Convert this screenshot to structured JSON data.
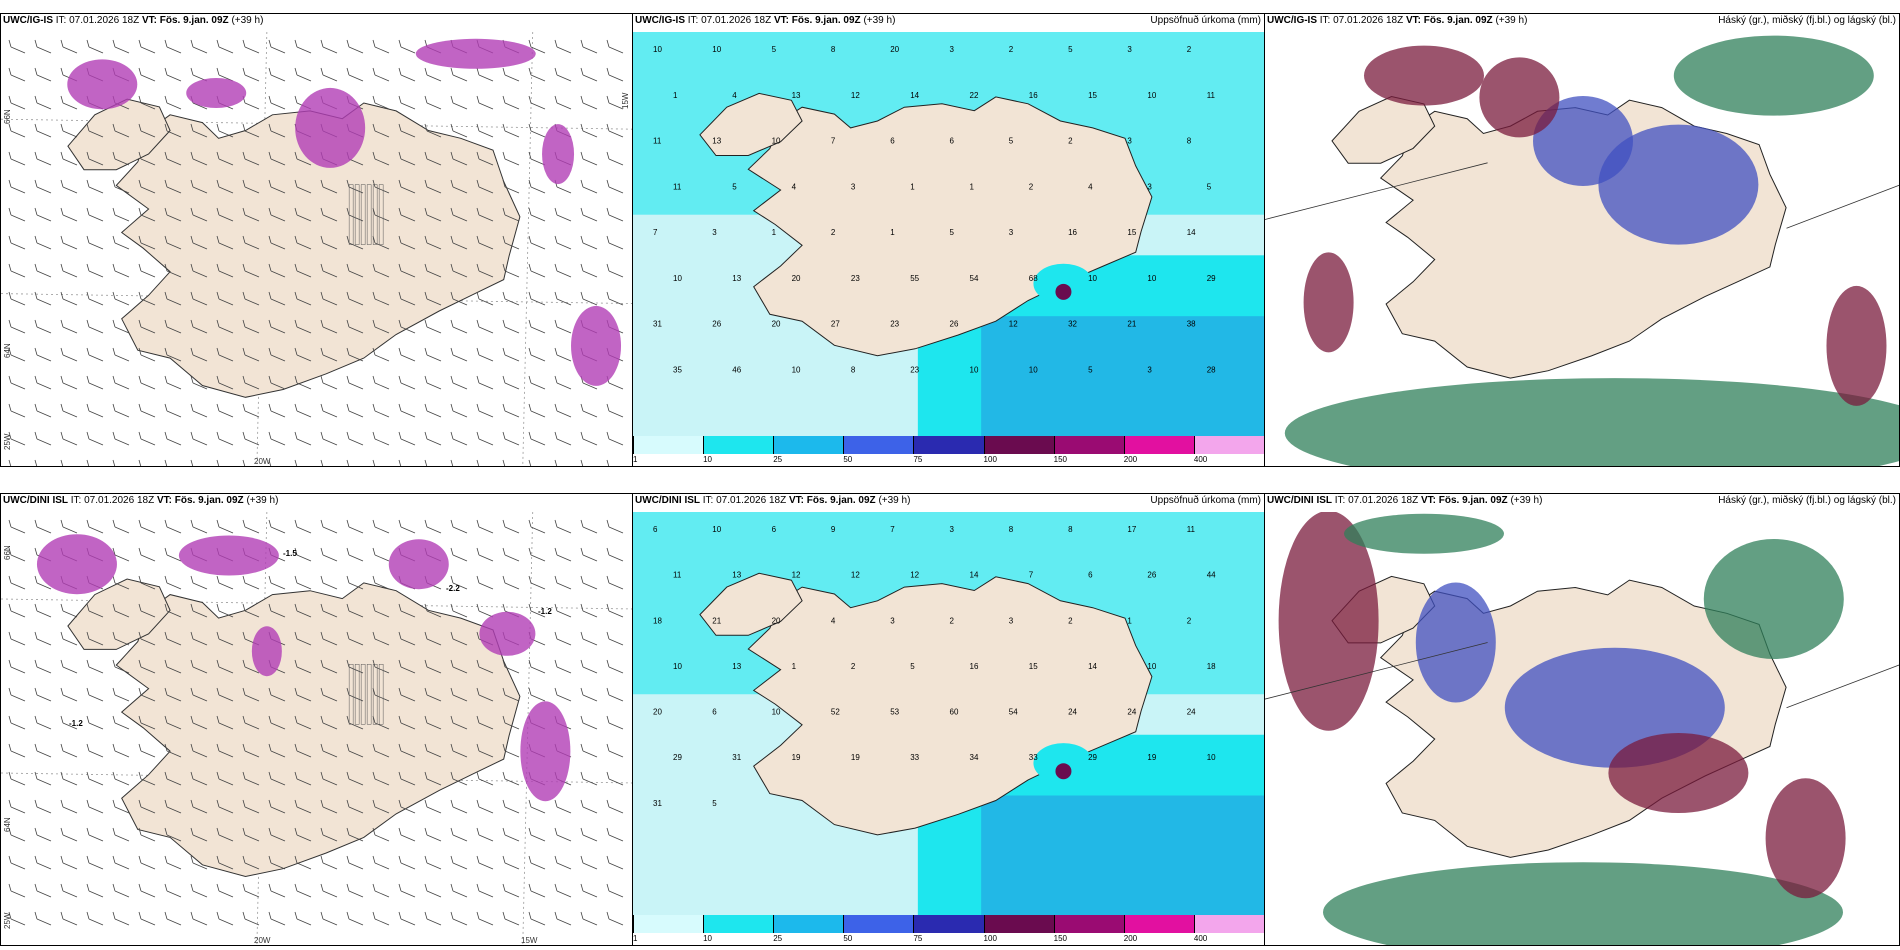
{
  "colors": {
    "land": "#f2e4d5",
    "sea_light": "#c9f4f7",
    "sea_cyan": "#1ee6ee",
    "sea_mid": "#22b8e6",
    "purple": "#b23db5",
    "dark_red": "#7a1b3c",
    "blue": "#4050c0",
    "green": "#2f7f5a"
  },
  "panels": {
    "igis_wind": {
      "model": "UWC/IG-IS",
      "it_label": "IT:",
      "it": "07.01.2026 18Z",
      "vt_label": "VT:",
      "vt": "Fös. 9.jan. 09Z",
      "lead": "(+39 h)",
      "grid_labels": [
        "20W",
        "25W",
        "64N",
        "66N",
        "15W"
      ]
    },
    "igis_precip": {
      "model": "UWC/IG-IS",
      "it_label": "IT:",
      "it": "07.01.2026 18Z",
      "vt_label": "VT:",
      "vt": "Fös. 9.jan. 09Z",
      "lead": "(+39 h)",
      "title": "Uppsöfnuð úrkoma (mm)"
    },
    "igis_cloud": {
      "model": "UWC/IG-IS",
      "it_label": "IT:",
      "it": "07.01.2026 18Z",
      "vt_label": "VT:",
      "vt": "Fös. 9.jan. 09Z",
      "lead": "(+39 h)",
      "title": "Háský (gr.), miðský (fj.bl.) og lágský (bl.)"
    },
    "dini_wind": {
      "model": "UWC/DINI ISL",
      "it_label": "IT:",
      "it": "07.01.2026 18Z",
      "vt_label": "VT:",
      "vt": "Fös. 9.jan. 09Z",
      "lead": "(+39 h)",
      "grid_labels": [
        "20W",
        "15W",
        "25W",
        "64N",
        "66N",
        "-1.2",
        "-1.2",
        "-1.5",
        "-2.2"
      ]
    },
    "dini_precip": {
      "model": "UWC/DINI ISL",
      "it_label": "IT:",
      "it": "07.01.2026 18Z",
      "vt_label": "VT:",
      "vt": "Fös. 9.jan. 09Z",
      "lead": "(+39 h)",
      "title": "Uppsöfnuð úrkoma (mm)"
    },
    "dini_cloud": {
      "model": "UWC/DINI ISL",
      "it_label": "IT:",
      "it": "07.01.2026 18Z",
      "vt_label": "VT:",
      "vt": "Fös. 9.jan. 09Z",
      "lead": "(+39 h)",
      "title": "Háský (gr.), miðský (fj.bl.) og lágský (bl.)"
    }
  },
  "colorbar": {
    "ticks": [
      "1",
      "10",
      "25",
      "50",
      "75",
      "100",
      "150",
      "200",
      "400"
    ],
    "colors": [
      "#d7fbfd",
      "#1ee6ee",
      "#1cb9ec",
      "#3d62e8",
      "#2a2ab0",
      "#6a0b4f",
      "#9a0b72",
      "#e210a0",
      "#f3a6ec"
    ]
  },
  "precip_values_top": [
    "10",
    "10",
    "5",
    "8",
    "20",
    "3",
    "2",
    "5",
    "3",
    "2",
    "1",
    "4",
    "13",
    "12",
    "14",
    "22",
    "16",
    "15",
    "10",
    "11",
    "11",
    "13",
    "10",
    "7",
    "6",
    "6",
    "5",
    "2",
    "3",
    "8",
    "11",
    "5",
    "4",
    "3",
    "1",
    "1",
    "2",
    "4",
    "3",
    "5",
    "7",
    "3",
    "1",
    "2",
    "1",
    "5",
    "3",
    "16",
    "15",
    "14",
    "10",
    "13",
    "20",
    "23",
    "55",
    "54",
    "68",
    "10",
    "10",
    "29",
    "31",
    "26",
    "20",
    "27",
    "23",
    "26",
    "12",
    "32",
    "21",
    "38",
    "35",
    "46",
    "10",
    "8",
    "23",
    "10",
    "10",
    "5",
    "3",
    "28"
  ],
  "precip_values_bottom": [
    "6",
    "10",
    "6",
    "9",
    "7",
    "3",
    "8",
    "8",
    "17",
    "11",
    "11",
    "13",
    "12",
    "12",
    "12",
    "14",
    "7",
    "6",
    "26",
    "44",
    "18",
    "21",
    "20",
    "4",
    "3",
    "2",
    "3",
    "2",
    "1",
    "2",
    "10",
    "13",
    "1",
    "2",
    "5",
    "16",
    "15",
    "14",
    "10",
    "18",
    "20",
    "6",
    "10",
    "52",
    "53",
    "60",
    "54",
    "24",
    "24",
    "24",
    "29",
    "31",
    "19",
    "19",
    "33",
    "34",
    "33",
    "29",
    "19",
    "10",
    "31",
    "5"
  ]
}
